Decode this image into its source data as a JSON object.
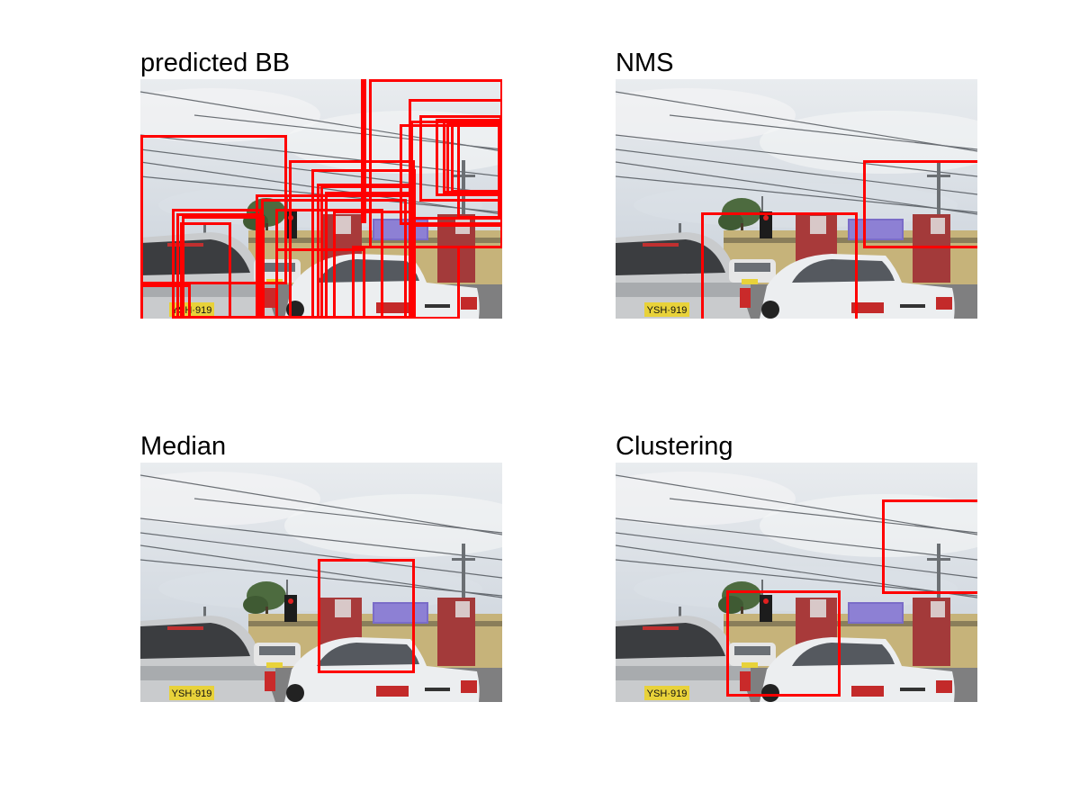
{
  "colors": {
    "box": "#ff0000",
    "background": "#ffffff"
  },
  "panels": [
    {
      "id": "predicted-bb",
      "title": "predicted BB"
    },
    {
      "id": "nms",
      "title": "NMS"
    },
    {
      "id": "median",
      "title": "Median"
    },
    {
      "id": "clustering",
      "title": "Clustering"
    }
  ],
  "scene": {
    "plate_text": "YSH·919"
  }
}
